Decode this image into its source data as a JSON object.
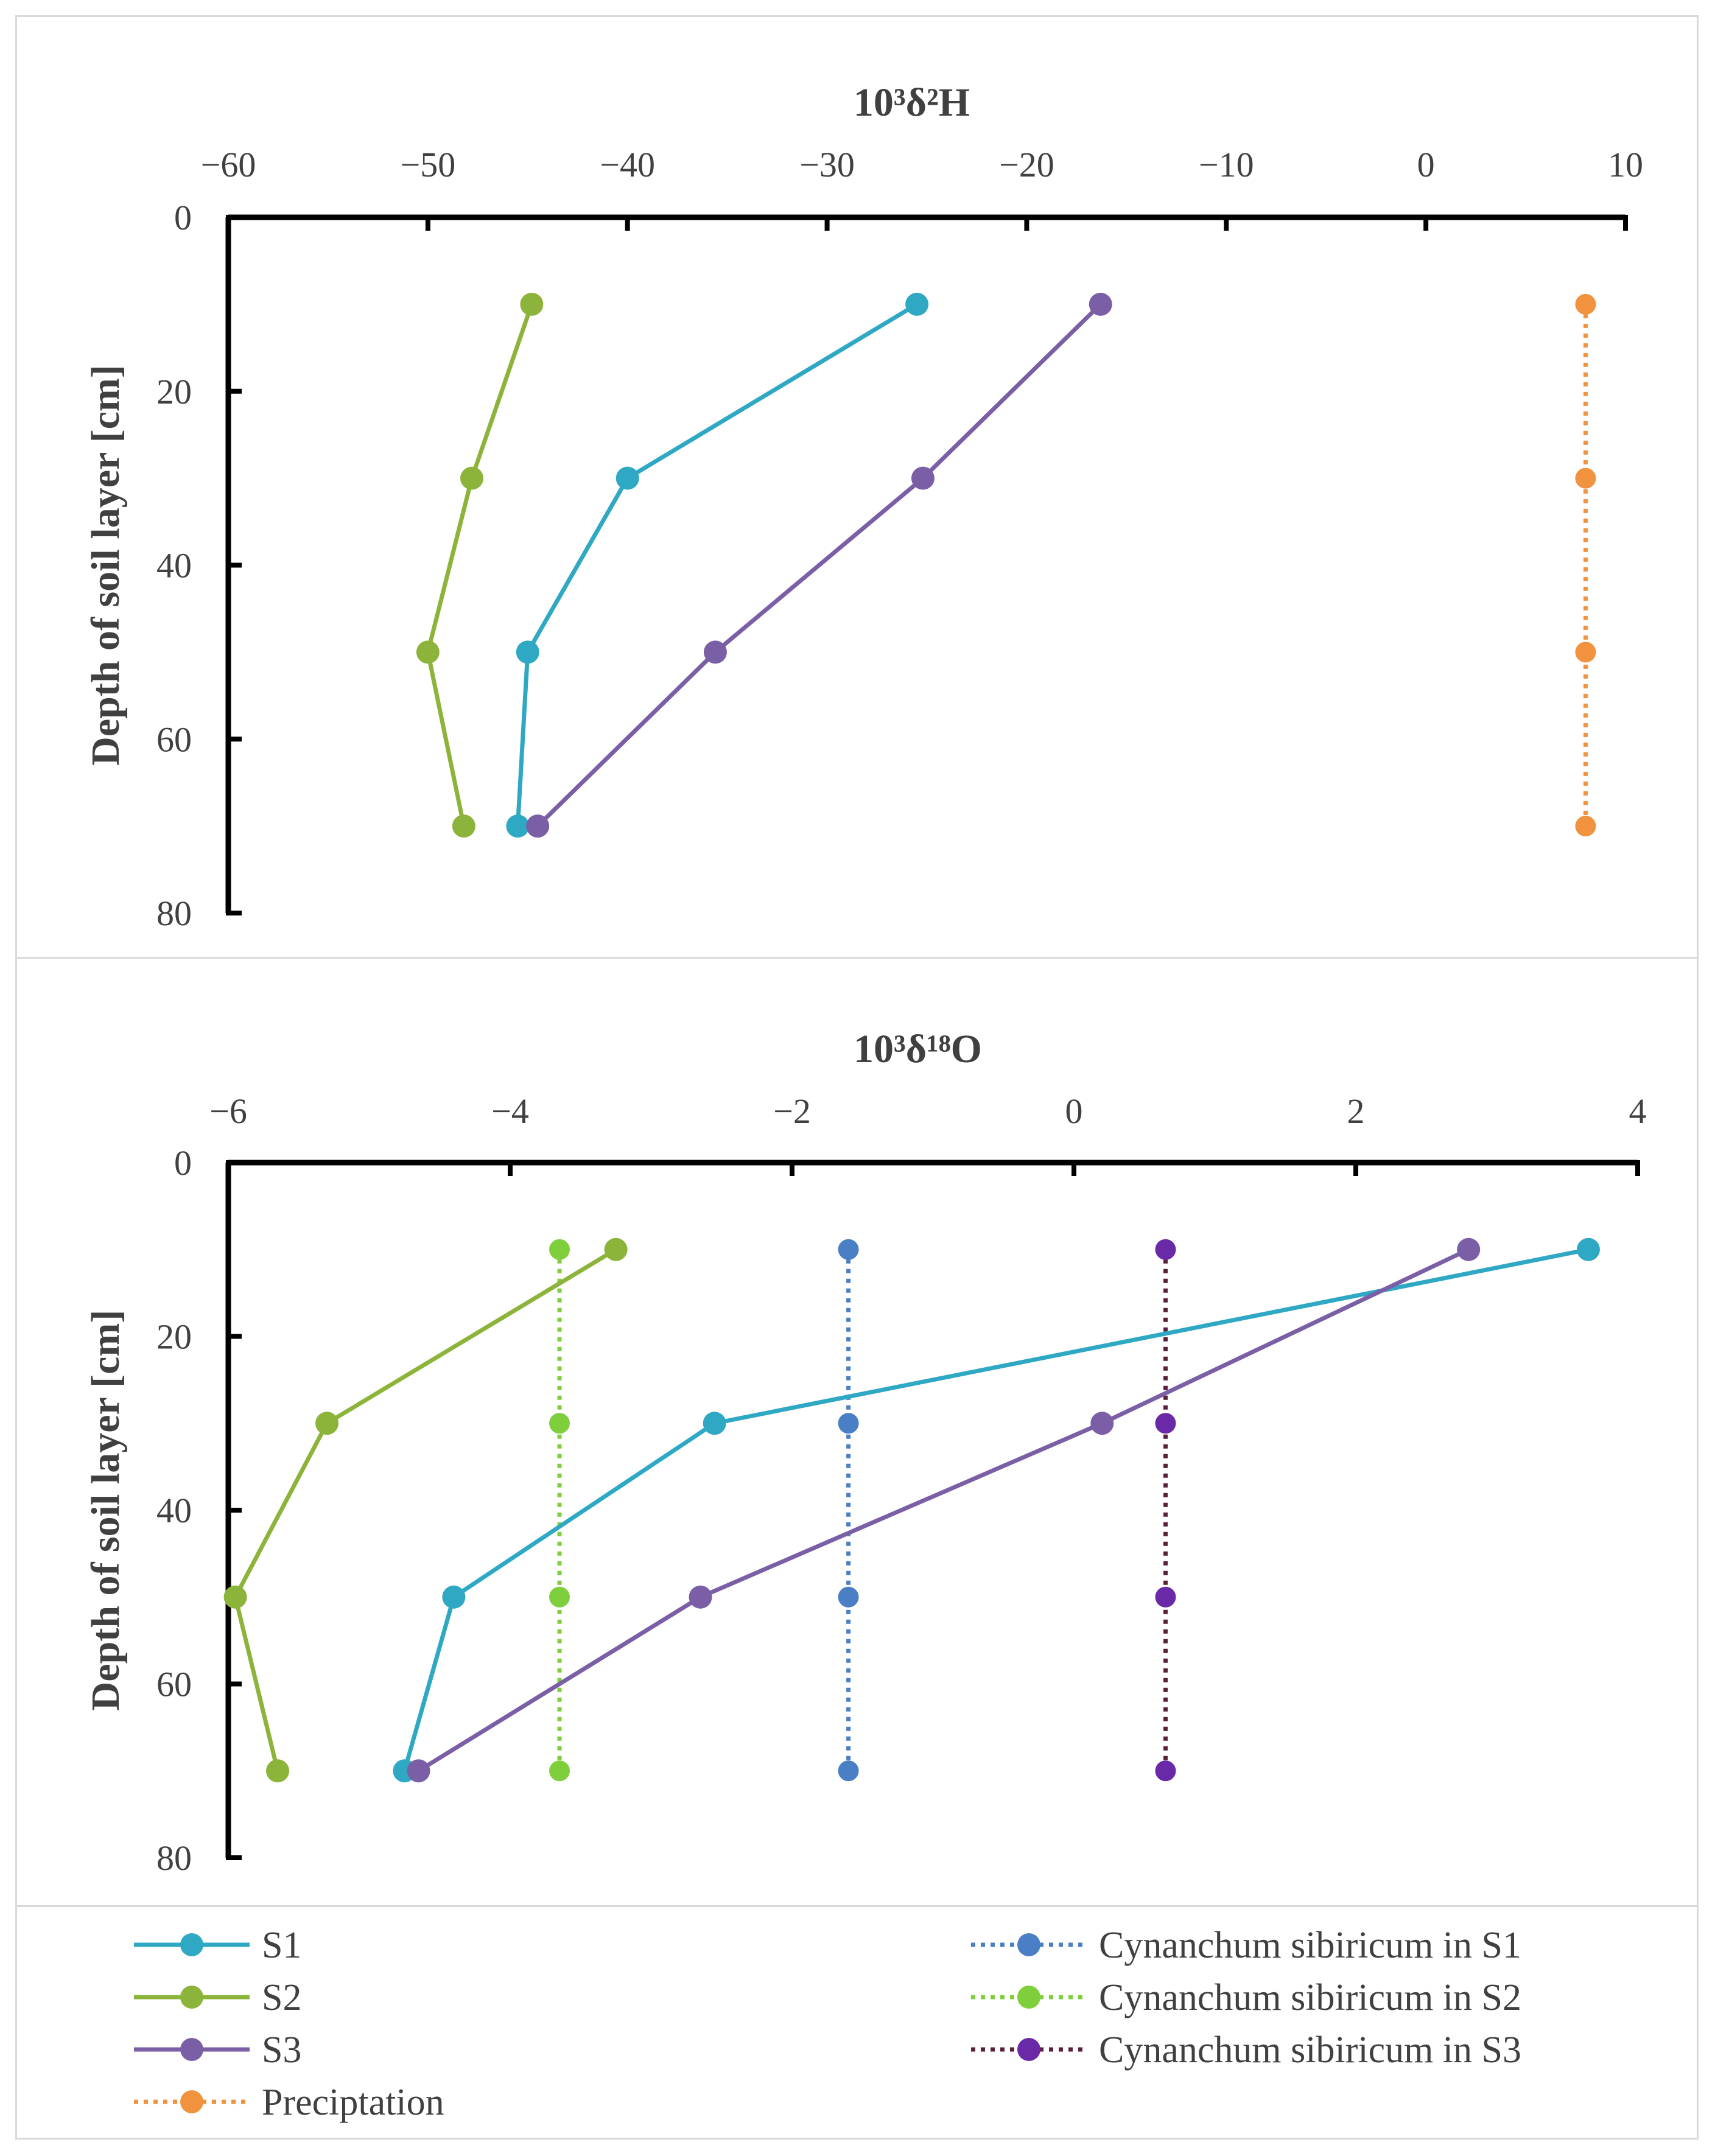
{
  "chart_data": [
    {
      "type": "line",
      "title": "10³δ²H",
      "ylabel": "Depth of soil layer [cm]",
      "xlim": [
        -60,
        10
      ],
      "ylim": [
        0,
        80
      ],
      "y_inverted": true,
      "x_axis_position": "top",
      "xticks": [
        -60,
        -50,
        -40,
        -30,
        -20,
        -10,
        0,
        10
      ],
      "xtick_labels": [
        "−60",
        "−50",
        "−40",
        "−30",
        "−20",
        "−10",
        "0",
        "10"
      ],
      "yticks": [
        0,
        20,
        40,
        60,
        80
      ],
      "ytick_labels": [
        "0",
        "20",
        "40",
        "60",
        "80"
      ],
      "series": [
        {
          "name": "S1",
          "color": "#2fa8c4",
          "style": "solid",
          "x": [
            -25.5,
            -40,
            -45,
            -45.5
          ],
          "y": [
            10,
            30,
            50,
            70
          ]
        },
        {
          "name": "S2",
          "color": "#8cb43a",
          "style": "solid",
          "x": [
            -44.8,
            -47.8,
            -50,
            -48.2
          ],
          "y": [
            10,
            30,
            50,
            70
          ]
        },
        {
          "name": "S3",
          "color": "#7b5fa6",
          "style": "solid",
          "x": [
            -16.3,
            -25.2,
            -35.6,
            -44.5
          ],
          "y": [
            10,
            30,
            50,
            70
          ]
        },
        {
          "name": "Preciptation",
          "color": "#f0923e",
          "style": "dotted",
          "x": [
            8,
            8,
            8,
            8
          ],
          "y": [
            10,
            30,
            50,
            70
          ]
        }
      ]
    },
    {
      "type": "line",
      "title": "10³δ¹⁸O",
      "ylabel": "Depth of soil layer [cm]",
      "xlim": [
        -6,
        4
      ],
      "ylim": [
        0,
        80
      ],
      "y_inverted": true,
      "x_axis_position": "top",
      "xticks": [
        -6,
        -4,
        -2,
        0,
        2,
        4
      ],
      "xtick_labels": [
        "−6",
        "−4",
        "−2",
        "0",
        "2",
        "4"
      ],
      "yticks": [
        0,
        20,
        40,
        60,
        80
      ],
      "ytick_labels": [
        "0",
        "20",
        "40",
        "60",
        "80"
      ],
      "series": [
        {
          "name": "S1",
          "color": "#2fa8c4",
          "style": "solid",
          "x": [
            3.65,
            -2.55,
            -4.4,
            -4.75
          ],
          "y": [
            10,
            30,
            50,
            70
          ]
        },
        {
          "name": "S2",
          "color": "#8cb43a",
          "style": "solid",
          "x": [
            -3.25,
            -5.3,
            -5.95,
            -5.65
          ],
          "y": [
            10,
            30,
            50,
            70
          ]
        },
        {
          "name": "S3",
          "color": "#7b5fa6",
          "style": "solid",
          "x": [
            2.8,
            0.2,
            -2.65,
            -4.65
          ],
          "y": [
            10,
            30,
            50,
            70
          ]
        },
        {
          "name": "Cynanchum sibiricum in S1",
          "color": "#4a7fc6",
          "style": "dotted",
          "x": [
            -1.6,
            -1.6,
            -1.6,
            -1.6
          ],
          "y": [
            10,
            30,
            50,
            70
          ]
        },
        {
          "name": "Cynanchum sibiricum in S2",
          "color": "#7fcf3c",
          "style": "dotted",
          "x": [
            -3.65,
            -3.65,
            -3.65,
            -3.65
          ],
          "y": [
            10,
            30,
            50,
            70
          ]
        },
        {
          "name": "Cynanchum sibiricum in S3",
          "color": "#6a2aa8",
          "line_color": "#5a1f3a",
          "style": "dotted",
          "x": [
            0.65,
            0.65,
            0.65,
            0.65
          ],
          "y": [
            10,
            30,
            50,
            70
          ]
        }
      ]
    }
  ],
  "legend": {
    "placement": "bottom",
    "items": [
      {
        "label": "S1",
        "color": "#2fa8c4",
        "style": "solid"
      },
      {
        "label": "S2",
        "color": "#8cb43a",
        "style": "solid"
      },
      {
        "label": "S3",
        "color": "#7b5fa6",
        "style": "solid"
      },
      {
        "label": "Preciptation",
        "color": "#f0923e",
        "style": "dotted"
      },
      {
        "label": "Cynanchum sibiricum in S1",
        "color": "#4a7fc6",
        "style": "dotted"
      },
      {
        "label": "Cynanchum sibiricum in S2",
        "color": "#7fcf3c",
        "style": "dotted"
      },
      {
        "label": "Cynanchum sibiricum in S3",
        "color": "#6a2aa8",
        "line_color": "#5a1f3a",
        "style": "dotted"
      }
    ]
  }
}
